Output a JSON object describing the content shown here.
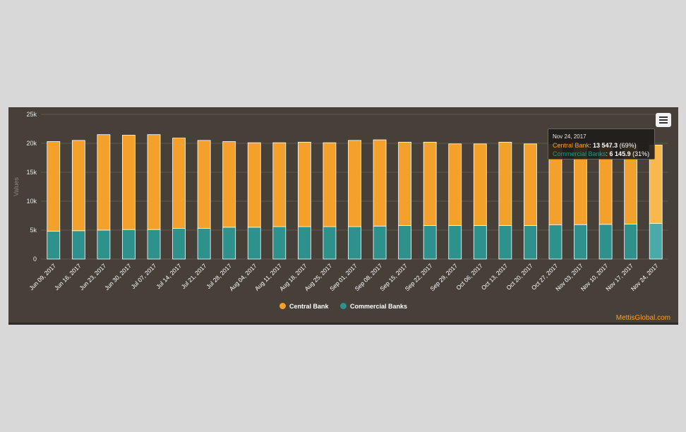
{
  "chart_data": {
    "type": "bar",
    "stacked": true,
    "categories": [
      "Jun 09, 2017",
      "Jun 16, 2017",
      "Jun 23, 2017",
      "Jun 30, 2017",
      "Jul 07, 2017",
      "Jul 14, 2017",
      "Jul 21, 2017",
      "Jul 28, 2017",
      "Aug 04, 2017",
      "Aug 11, 2017",
      "Aug 18, 2017",
      "Aug 25, 2017",
      "Sep 01, 2017",
      "Sep 08, 2017",
      "Sep 15, 2017",
      "Sep 22, 2017",
      "Sep 29, 2017",
      "Oct 06, 2017",
      "Oct 13, 2017",
      "Oct 20, 2017",
      "Oct 27, 2017",
      "Nov 03, 2017",
      "Nov 10, 2017",
      "Nov 17, 2017",
      "Nov 24, 2017"
    ],
    "series": [
      {
        "name": "Central Bank",
        "color": "#f4a12b",
        "values": [
          15500,
          15600,
          16500,
          16300,
          16400,
          15600,
          15200,
          14800,
          14600,
          14500,
          14600,
          14500,
          14900,
          14900,
          14400,
          14400,
          14100,
          14100,
          14400,
          14100,
          13900,
          13900,
          13800,
          13600,
          13547.3
        ]
      },
      {
        "name": "Commercial Banks",
        "color": "#2d918c",
        "values": [
          4800,
          4900,
          5000,
          5100,
          5100,
          5300,
          5300,
          5500,
          5500,
          5600,
          5600,
          5600,
          5600,
          5700,
          5800,
          5800,
          5800,
          5800,
          5800,
          5800,
          5900,
          5950,
          6000,
          6050,
          6145.9
        ]
      }
    ],
    "ylabel": "Values",
    "ylim": [
      0,
      25000
    ],
    "yticks": [
      "0",
      "5k",
      "10k",
      "15k",
      "20k",
      "25k"
    ],
    "yticks_values": [
      0,
      5000,
      10000,
      15000,
      20000,
      25000
    ],
    "grid": true,
    "legend_position": "bottom-center",
    "highlighted_index": 24
  },
  "tooltip": {
    "date": "Nov 24, 2017",
    "central_label": "Central Bank",
    "central_value": "13 547.3",
    "central_pct": "(69%)",
    "commercial_label": "Commercial Banks",
    "commercial_value": "6 145.9",
    "commercial_pct": "(31%)"
  },
  "legend": {
    "central": "Central Bank",
    "commercial": "Commercial Banks"
  },
  "credit": "MettisGlobal.com",
  "colors": {
    "central": "#f4a12b",
    "commercial": "#2d918c",
    "central_hover": "#f8b84c",
    "commercial_hover": "#49aaa6"
  }
}
